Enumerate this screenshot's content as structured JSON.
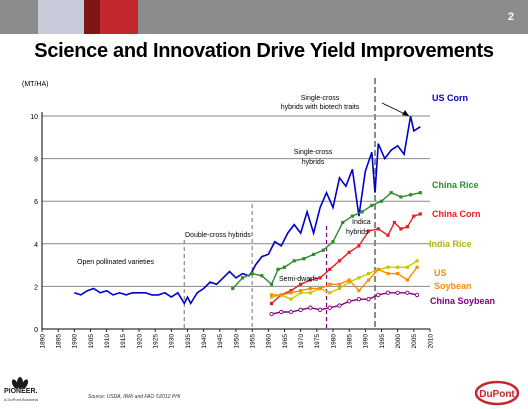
{
  "header": {
    "page_number": "2"
  },
  "title": "Science and Innovation Drive Yield Improvements",
  "source_note": "Source: USDA, IRRI and FAO ©2012 PHI",
  "logos": {
    "left_name": "PIONEER.",
    "left_sub": "A DuPont Business",
    "right_name": "DuPont"
  },
  "colors": {
    "us_corn": "#0000cc",
    "china_rice": "#2e8b2e",
    "china_corn": "#e61e1e",
    "india_rice": "#c8c800",
    "us_soybean": "#ff8c00",
    "china_soybean": "#800080",
    "header_gray": "#8c8c8c",
    "header_red": "#c1272d"
  },
  "chart_data": {
    "type": "line",
    "ylabel": "(MT/HA)",
    "xlim": [
      1890,
      2010
    ],
    "ylim": [
      0,
      10
    ],
    "yticks": [
      0,
      2,
      4,
      6,
      8,
      10
    ],
    "xticks": [
      1890,
      1895,
      1900,
      1905,
      1910,
      1915,
      1920,
      1925,
      1930,
      1935,
      1940,
      1945,
      1950,
      1955,
      1960,
      1965,
      1970,
      1975,
      1980,
      1985,
      1990,
      1995,
      2000,
      2005,
      2010
    ],
    "grid": "horizontal",
    "series": [
      {
        "name": "US Corn",
        "color": "#0000cc",
        "marker": "none",
        "x": [
          1900,
          1902,
          1904,
          1906,
          1908,
          1910,
          1912,
          1914,
          1916,
          1918,
          1920,
          1922,
          1924,
          1926,
          1928,
          1930,
          1932,
          1934,
          1935,
          1936,
          1938,
          1940,
          1942,
          1944,
          1946,
          1948,
          1950,
          1952,
          1954,
          1955,
          1956,
          1958,
          1960,
          1962,
          1964,
          1966,
          1968,
          1970,
          1972,
          1974,
          1976,
          1978,
          1980,
          1982,
          1984,
          1986,
          1988,
          1990,
          1992,
          1993,
          1994,
          1996,
          1998,
          2000,
          2002,
          2004,
          2005,
          2006,
          2007
        ],
        "values": [
          1.7,
          1.6,
          1.8,
          1.9,
          1.7,
          1.8,
          1.6,
          1.7,
          1.6,
          1.7,
          1.7,
          1.7,
          1.6,
          1.6,
          1.7,
          1.5,
          1.7,
          1.2,
          1.5,
          1.2,
          1.7,
          1.9,
          2.2,
          2.1,
          2.4,
          2.7,
          2.4,
          2.6,
          2.5,
          2.7,
          3.0,
          3.4,
          3.5,
          4.1,
          3.9,
          4.5,
          4.9,
          4.5,
          5.5,
          4.5,
          5.7,
          6.4,
          5.7,
          7.1,
          6.7,
          7.5,
          5.3,
          7.4,
          8.3,
          6.4,
          8.7,
          8.0,
          8.4,
          8.6,
          8.2,
          10.0,
          9.3,
          9.4,
          9.5
        ]
      },
      {
        "name": "China Rice",
        "color": "#2e8b2e",
        "marker": "square",
        "x": [
          1949,
          1952,
          1955,
          1958,
          1961,
          1963,
          1965,
          1968,
          1971,
          1974,
          1977,
          1980,
          1983,
          1986,
          1989,
          1992,
          1995,
          1998,
          2001,
          2004,
          2007
        ],
        "values": [
          1.9,
          2.4,
          2.6,
          2.5,
          2.1,
          2.8,
          2.9,
          3.2,
          3.3,
          3.5,
          3.7,
          4.1,
          5.0,
          5.3,
          5.5,
          5.8,
          6.0,
          6.4,
          6.2,
          6.3,
          6.4
        ]
      },
      {
        "name": "China Corn",
        "color": "#e61e1e",
        "marker": "square",
        "x": [
          1961,
          1964,
          1967,
          1970,
          1973,
          1976,
          1979,
          1982,
          1985,
          1988,
          1991,
          1994,
          1997,
          1999,
          2001,
          2003,
          2005,
          2007
        ],
        "values": [
          1.2,
          1.6,
          1.8,
          2.1,
          2.3,
          2.4,
          2.8,
          3.2,
          3.6,
          3.9,
          4.6,
          4.7,
          4.4,
          5.0,
          4.7,
          4.8,
          5.3,
          5.4
        ]
      },
      {
        "name": "India Rice",
        "color": "#c8c800",
        "marker": "square",
        "x": [
          1961,
          1964,
          1967,
          1970,
          1973,
          1976,
          1979,
          1982,
          1985,
          1988,
          1991,
          1994,
          1997,
          2000,
          2003,
          2006
        ],
        "values": [
          1.5,
          1.6,
          1.4,
          1.7,
          1.7,
          1.9,
          1.7,
          1.9,
          2.2,
          2.4,
          2.6,
          2.8,
          2.9,
          2.9,
          2.9,
          3.2
        ]
      },
      {
        "name": "US Soybean",
        "color": "#ff8c00",
        "marker": "square",
        "x": [
          1961,
          1964,
          1967,
          1970,
          1973,
          1976,
          1979,
          1982,
          1985,
          1988,
          1991,
          1994,
          1997,
          2000,
          2003,
          2006
        ],
        "values": [
          1.6,
          1.6,
          1.7,
          1.8,
          1.9,
          1.9,
          2.1,
          2.1,
          2.3,
          1.8,
          2.3,
          2.8,
          2.6,
          2.6,
          2.3,
          2.9
        ]
      },
      {
        "name": "China Soybean",
        "color": "#800080",
        "marker": "circle",
        "x": [
          1961,
          1964,
          1967,
          1970,
          1973,
          1976,
          1979,
          1982,
          1985,
          1988,
          1991,
          1994,
          1997,
          2000,
          2003,
          2006
        ],
        "values": [
          0.7,
          0.8,
          0.8,
          0.9,
          1.0,
          0.9,
          1.0,
          1.1,
          1.3,
          1.4,
          1.4,
          1.6,
          1.7,
          1.7,
          1.7,
          1.6
        ]
      }
    ],
    "vlines": [
      {
        "x": 1934,
        "color": "#888888"
      },
      {
        "x": 1955,
        "color": "#888888"
      },
      {
        "x": 1978,
        "color": "#800080"
      },
      {
        "x": 1993,
        "color": "#888888"
      }
    ],
    "annotations": [
      {
        "text": "Open pollinated varieties"
      },
      {
        "text": "Double-cross hybrids"
      },
      {
        "text": "Single-cross hybrids"
      },
      {
        "text": "Single-cross hybrids with biotech traits"
      },
      {
        "text": "Semi-dwarfs"
      },
      {
        "text": "Indica hybrids"
      }
    ]
  }
}
